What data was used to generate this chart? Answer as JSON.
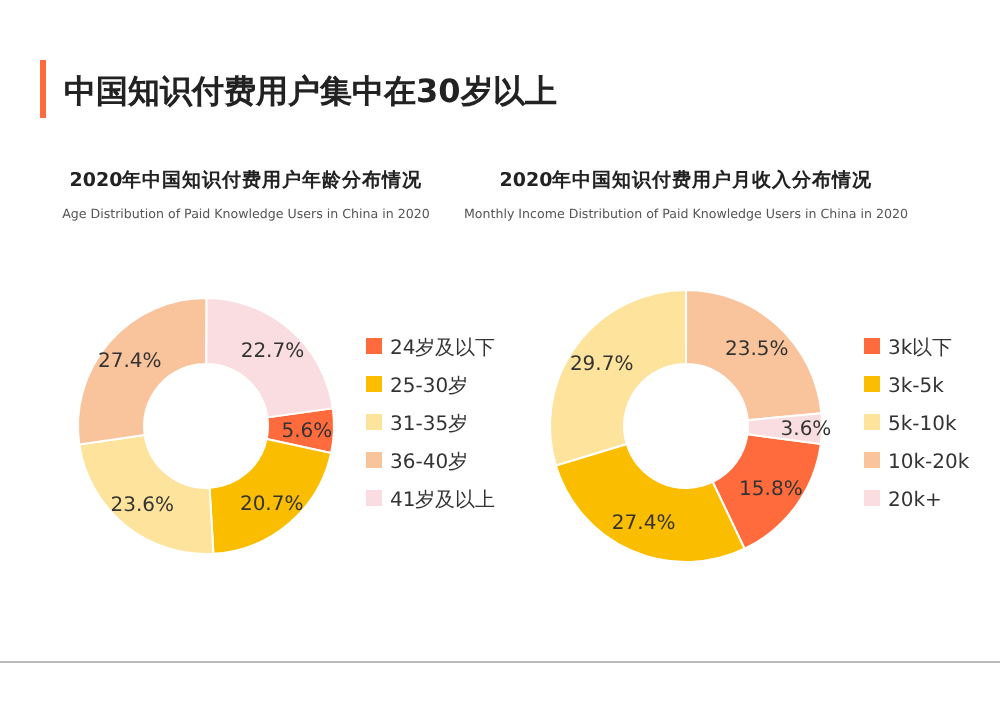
{
  "chart_data": [
    {
      "type": "donut",
      "title": "2020年中国知识付费用户年龄分布情况",
      "subtitle": "Age Distribution of Paid Knowledge Users in China in 2020",
      "annotations": [
        "中国知识付费用户集中在30岁以上"
      ],
      "categories": [
        "24岁及以下",
        "25-30岁",
        "31-35岁",
        "36-40岁",
        "41岁及以上"
      ],
      "values": [
        5.6,
        20.7,
        23.6,
        27.4,
        22.7
      ],
      "value_labels": [
        "5.6%",
        "20.7%",
        "23.6%",
        "27.4%",
        "22.7%"
      ],
      "colors": [
        "#ff6b3d",
        "#fbbd00",
        "#fde39b",
        "#f9c39b",
        "#f9dde0"
      ],
      "legend": "right"
    },
    {
      "type": "donut",
      "title": "2020年中国知识付费用户月收入分布情况",
      "subtitle": "Monthly Income Distribution of Paid Knowledge Users  in China in 2020",
      "categories": [
        "3k以下",
        "3k-5k",
        "5k-10k",
        "10k-20k",
        "20k+"
      ],
      "values": [
        15.8,
        27.4,
        29.7,
        23.5,
        3.6
      ],
      "value_labels": [
        "15.8%",
        "27.4%",
        "29.7%",
        "23.5%",
        "3.6%"
      ],
      "colors": [
        "#ff6b3d",
        "#fbbd00",
        "#fde39b",
        "#f9c39b",
        "#f9dde0"
      ],
      "legend": "right"
    }
  ]
}
